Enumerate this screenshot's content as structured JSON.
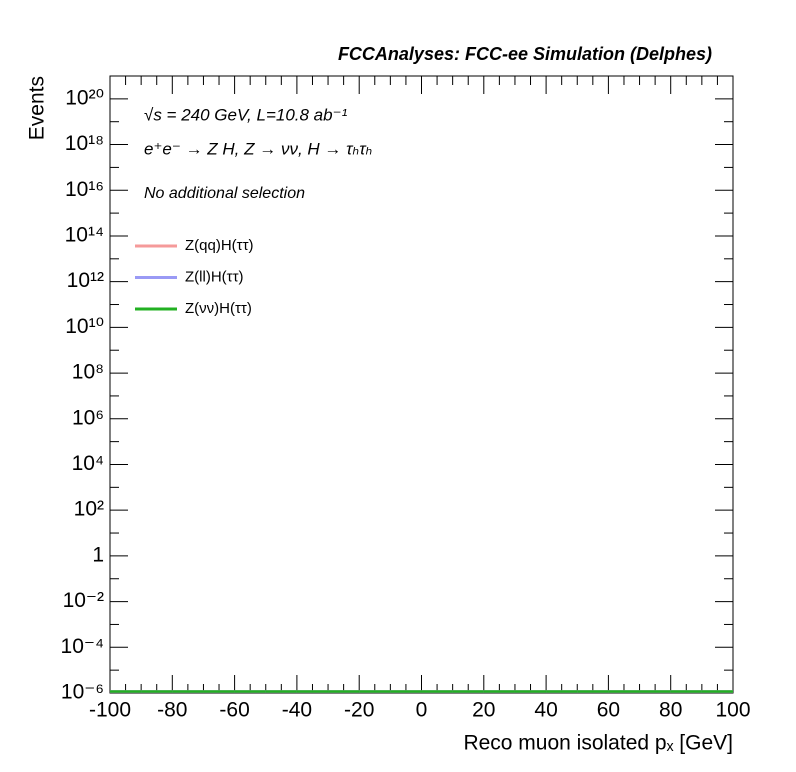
{
  "chart_data": {
    "type": "histogram",
    "header": "FCCAnalyses: FCC-ee Simulation (Delphes)",
    "annotations": [
      "√s = 240 GeV, L=10.8 ab⁻¹",
      "e⁺e⁻ → Z H, Z → νν, H → τₕτₕ",
      "No additional selection"
    ],
    "x_label": "Reco muon isolated pₓ [GeV]",
    "y_label": "Events",
    "log_y": true,
    "bins": [
      -100,
      -90,
      -80,
      -70,
      -60,
      -50,
      -40,
      -30,
      -20,
      -10,
      0,
      10,
      20,
      30,
      40,
      50,
      60,
      70,
      80,
      90,
      100
    ],
    "series": [
      {
        "name": "Z(qq)H(ττ)",
        "color": "#f59a9a",
        "values": [
          0,
          0,
          0,
          0,
          0,
          0,
          0,
          0,
          0,
          0,
          0,
          0,
          0,
          0,
          0,
          0,
          0,
          0,
          0,
          0
        ]
      },
      {
        "name": "Z(ll)H(ττ)",
        "color": "#9a9af5",
        "values": [
          0,
          0,
          0,
          0,
          0,
          0,
          0,
          0,
          0,
          0,
          0,
          0,
          0,
          0,
          0,
          0,
          0,
          0,
          0,
          0
        ]
      },
      {
        "name": "Z(νν)H(ττ)",
        "color": "#22b022",
        "values": [
          0,
          0,
          0,
          0,
          0,
          0,
          0,
          0,
          0,
          0,
          0,
          0,
          0,
          0,
          0,
          0,
          0,
          0,
          0,
          0
        ]
      }
    ],
    "xlim": [
      -100,
      100
    ],
    "xticks": [
      -100,
      -80,
      -60,
      -40,
      -20,
      0,
      20,
      40,
      60,
      80,
      100
    ],
    "ylim": [
      1e-06,
      1e+21
    ],
    "yticks": [
      {
        "value": 1e-06,
        "label": "10⁻⁶"
      },
      {
        "value": 0.0001,
        "label": "10⁻⁴"
      },
      {
        "value": 0.01,
        "label": "10⁻²"
      },
      1,
      {
        "value": 100,
        "label": "10²"
      },
      {
        "value": 10000.0,
        "label": "10⁴"
      },
      {
        "value": 1000000.0,
        "label": "10⁶"
      },
      {
        "value": 100000000.0,
        "label": "10⁸"
      },
      {
        "value": 10000000000.0,
        "label": "10¹⁰"
      },
      {
        "value": 1000000000000.0,
        "label": "10¹²"
      },
      {
        "value": 100000000000000.0,
        "label": "10¹⁴"
      },
      {
        "value": 1e+16,
        "label": "10¹⁶"
      },
      {
        "value": 1e+18,
        "label": "10¹⁸"
      },
      {
        "value": 1e+20,
        "label": "10²⁰"
      }
    ],
    "legend": "upper left"
  }
}
